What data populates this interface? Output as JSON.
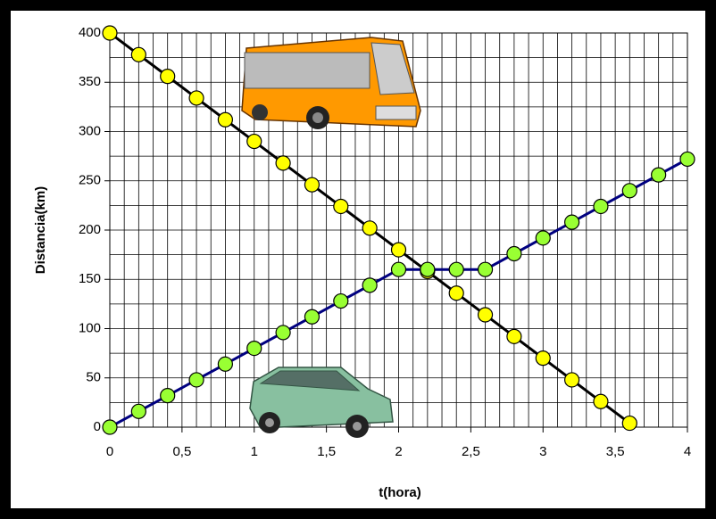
{
  "chart_data": {
    "type": "line",
    "x_label": "t(hora)",
    "y_label": "Distancia(km)",
    "xlim": [
      0,
      4
    ],
    "ylim": [
      0,
      400
    ],
    "xticks": [
      0,
      {
        "value": 0.5,
        "label": "0,5"
      },
      1,
      {
        "value": 1.5,
        "label": "1,5"
      },
      2,
      {
        "value": 2.5,
        "label": "2,5"
      },
      3,
      {
        "value": 3.5,
        "label": "3,5"
      },
      4
    ],
    "yticks": [
      0,
      50,
      100,
      150,
      200,
      250,
      300,
      350,
      400
    ],
    "grid": {
      "x_step": 0.1,
      "y_step": 25
    },
    "series": [
      {
        "color": "#000000",
        "marker_color": "#ffff00",
        "x": [
          0,
          0.2,
          0.4,
          0.6,
          0.8,
          1,
          1.2,
          1.4,
          1.6,
          1.8,
          2,
          2.2,
          2.4,
          2.6,
          2.8,
          3,
          3.2,
          3.4,
          3.6
        ],
        "values": [
          400,
          378,
          356,
          334,
          312,
          290,
          268,
          246,
          224,
          202,
          180,
          158,
          136,
          114,
          92,
          70,
          48,
          26,
          4
        ]
      },
      {
        "color": "#000080",
        "marker_color": "#99ff33",
        "x": [
          0,
          0.2,
          0.4,
          0.6,
          0.8,
          1,
          1.2,
          1.4,
          1.6,
          1.8,
          2,
          2.2,
          2.4,
          2.6,
          2.8,
          3,
          3.2,
          3.4,
          3.6,
          3.8,
          4
        ],
        "values": [
          0,
          16,
          32,
          48,
          64,
          80,
          96,
          112,
          128,
          144,
          160,
          160,
          160,
          160,
          176,
          192,
          208,
          224,
          240,
          256,
          272
        ]
      }
    ]
  }
}
